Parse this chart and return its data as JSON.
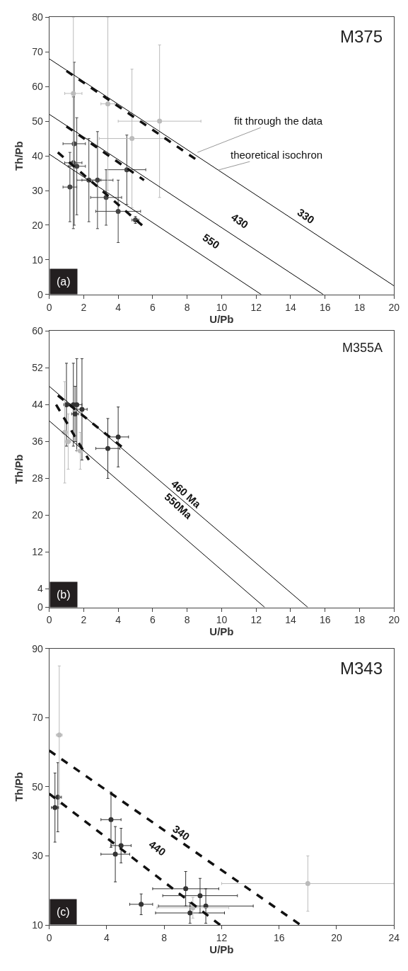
{
  "chart_data": [
    {
      "type": "scatter",
      "title": "M375",
      "xlabel": "U/Pb",
      "ylabel": "Th/Pb",
      "xlim": [
        0,
        20
      ],
      "ylim": [
        0,
        80
      ],
      "xticks": [
        0,
        2,
        4,
        6,
        8,
        10,
        12,
        14,
        16,
        18,
        20
      ],
      "yticks": [
        0,
        10,
        20,
        30,
        40,
        50,
        60,
        70,
        80
      ],
      "annotations": [
        "(a)",
        "330",
        "430",
        "550",
        {
          "text": "fit through the data",
          "x": 8.6,
          "y": 41
        },
        {
          "text": "theoretical isochron",
          "x": 9.8,
          "y": 35.9
        }
      ],
      "series": [
        {
          "marker": "circle",
          "color": "#444444",
          "x": [
            1.45,
            1.4,
            1.6,
            1.2,
            2.3,
            2.8,
            3.3,
            4.5,
            4.0,
            5.0
          ],
          "values": [
            43.5,
            38,
            37,
            31,
            33,
            33,
            28,
            36,
            24,
            21.5
          ],
          "xerrors": [
            0.65,
            0.5,
            0.5,
            0.4,
            0.7,
            0.9,
            0.9,
            1.1,
            1.3,
            0.2
          ],
          "errors": [
            23.5,
            19,
            14,
            10,
            12,
            14,
            8,
            10,
            9,
            1
          ]
        },
        {
          "marker": "circle",
          "color": "#bbbbbb",
          "x": [
            1.4,
            3.4,
            4.8,
            6.4
          ],
          "values": [
            58,
            55,
            45,
            50
          ],
          "xerrors": [
            0.5,
            0.4,
            1.9,
            2.4
          ],
          "errors": [
            22,
            25,
            20,
            22
          ]
        },
        {
          "type": "line",
          "marker": "none",
          "color": "#000000",
          "line_style": "solid",
          "x": [
            0,
            20
          ],
          "values": [
            68,
            2.5
          ]
        },
        {
          "type": "line",
          "marker": "none",
          "color": "#000000",
          "line_style": "solid",
          "x": [
            0,
            15.9
          ],
          "values": [
            52,
            0
          ]
        },
        {
          "type": "line",
          "marker": "none",
          "color": "#000000",
          "line_style": "solid",
          "x": [
            0,
            12.3
          ],
          "values": [
            40.5,
            0
          ]
        },
        {
          "type": "line",
          "marker": "none",
          "color": "#111111",
          "line_style": "dashed",
          "x": [
            1,
            8.8
          ],
          "values": [
            64.5,
            38
          ]
        },
        {
          "type": "line",
          "marker": "none",
          "color": "#111111",
          "line_style": "dashed",
          "x": [
            1,
            5.5
          ],
          "values": [
            48.5,
            33
          ]
        },
        {
          "type": "line",
          "marker": "none",
          "color": "#111111",
          "line_style": "dashed",
          "x": [
            0.5,
            5.5
          ],
          "values": [
            41,
            19.5
          ]
        }
      ]
    },
    {
      "type": "scatter",
      "title": "M355A",
      "xlabel": "U/Pb",
      "ylabel": "Th/Pb",
      "xlim": [
        0,
        20
      ],
      "ylim": [
        0,
        60
      ],
      "xticks": [
        0,
        2,
        4,
        6,
        8,
        10,
        12,
        14,
        16,
        18,
        20
      ],
      "yticks": [
        0,
        4,
        12,
        20,
        28,
        36,
        44,
        52,
        60
      ],
      "annotations": [
        "(b)",
        "460 Ma",
        "550Ma"
      ],
      "series": [
        {
          "marker": "circle",
          "color": "#333333",
          "x": [
            1.0,
            1.4,
            1.6,
            1.9,
            1.5,
            3.4,
            4.0
          ],
          "values": [
            44,
            44,
            44,
            43,
            42,
            34.5,
            37
          ],
          "xerrors": [
            0.15,
            0.2,
            0.3,
            0.3,
            0.2,
            0.7,
            0.6
          ],
          "errors": [
            9,
            9,
            10,
            11,
            6,
            6.5,
            6.5
          ]
        },
        {
          "marker": "circle",
          "color": "#bbbbbb",
          "x": [
            0.9,
            1.1,
            1.8
          ],
          "values": [
            38,
            36,
            34
          ],
          "xerrors": [
            0.15,
            0.15,
            0.2
          ],
          "errors": [
            11,
            6,
            4
          ]
        },
        {
          "type": "line",
          "marker": "none",
          "color": "#000000",
          "line_style": "solid",
          "x": [
            0,
            15
          ],
          "values": [
            48,
            0
          ]
        },
        {
          "type": "line",
          "marker": "none",
          "color": "#000000",
          "line_style": "solid",
          "x": [
            0,
            12.5
          ],
          "values": [
            40.5,
            0
          ]
        },
        {
          "type": "line",
          "marker": "none",
          "color": "#111111",
          "line_style": "dashed",
          "x": [
            0.5,
            4.5
          ],
          "values": [
            46,
            34
          ]
        },
        {
          "type": "line",
          "marker": "none",
          "color": "#111111",
          "line_style": "dashed",
          "x": [
            0.4,
            2.3
          ],
          "values": [
            44,
            32
          ]
        }
      ]
    },
    {
      "type": "scatter",
      "title": "M343",
      "xlabel": "U/Pb",
      "ylabel": "Th/Pb",
      "xlim": [
        0,
        24
      ],
      "ylim": [
        10,
        90
      ],
      "xticks": [
        0,
        4,
        8,
        12,
        16,
        20,
        24
      ],
      "yticks": [
        10,
        30,
        50,
        70,
        90
      ],
      "annotations": [
        "(c)",
        "340",
        "440"
      ],
      "series": [
        {
          "marker": "circle",
          "color": "#333333",
          "x": [
            0.4,
            0.6,
            4.3,
            4.6,
            5.0,
            6.4,
            9.5,
            10.5,
            10.9,
            9.8
          ],
          "values": [
            44,
            47,
            40.5,
            30.5,
            33,
            16,
            20.5,
            18.5,
            15.5,
            13.5
          ],
          "xerrors": [
            0.25,
            0.25,
            0.7,
            1.0,
            0.7,
            0.8,
            2.3,
            2.6,
            3.3,
            2.4
          ],
          "errors": [
            10,
            10,
            8,
            8,
            5,
            3,
            5,
            5,
            5,
            3
          ]
        },
        {
          "marker": "circle",
          "color": "#bbbbbb",
          "x": [
            0.7,
            18,
            10
          ],
          "values": [
            65,
            22,
            15
          ],
          "xerrors": [
            0.2,
            6,
            2.5
          ],
          "errors": [
            20,
            8,
            3
          ]
        },
        {
          "type": "line",
          "marker": "none",
          "color": "#111111",
          "line_style": "dashed",
          "x": [
            0,
            17.5
          ],
          "values": [
            60.5,
            10
          ]
        },
        {
          "type": "line",
          "marker": "none",
          "color": "#111111",
          "line_style": "dashed",
          "x": [
            0,
            11.9
          ],
          "values": [
            48,
            10
          ]
        }
      ]
    }
  ]
}
